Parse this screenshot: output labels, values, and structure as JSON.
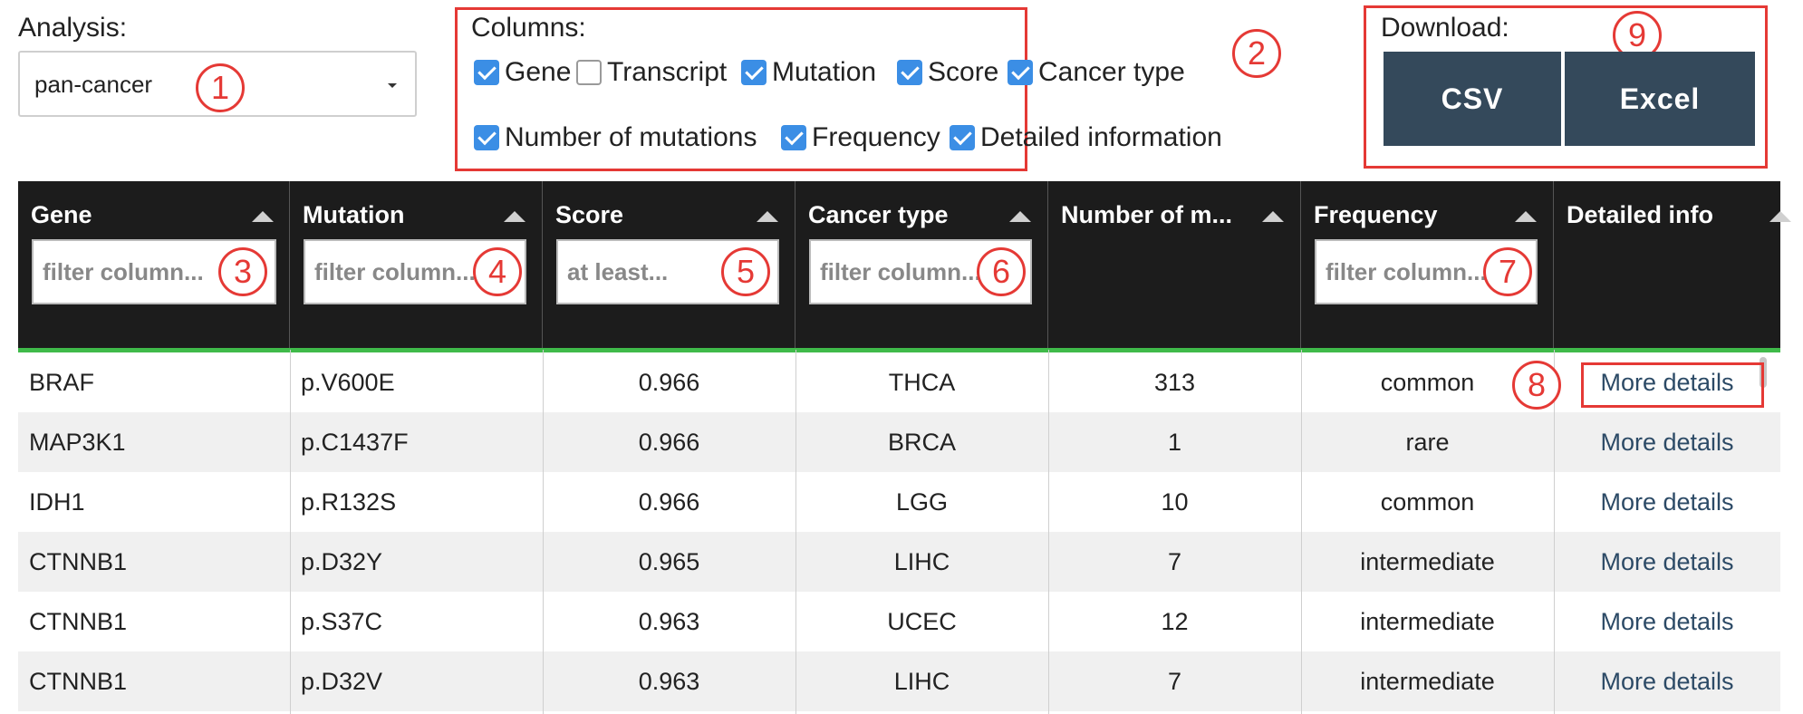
{
  "analysis": {
    "label": "Analysis:",
    "value": "pan-cancer"
  },
  "columns": {
    "label": "Columns:",
    "options": [
      {
        "label": "Gene",
        "checked": true
      },
      {
        "label": "Transcript",
        "checked": false
      },
      {
        "label": "Mutation",
        "checked": true
      },
      {
        "label": "Score",
        "checked": true
      },
      {
        "label": "Cancer type",
        "checked": true
      },
      {
        "label": "Number of mutations",
        "checked": true
      },
      {
        "label": "Frequency",
        "checked": true
      },
      {
        "label": "Detailed information",
        "checked": true
      }
    ]
  },
  "download": {
    "label": "Download:",
    "csv": "CSV",
    "excel": "Excel"
  },
  "table": {
    "headers": [
      "Gene",
      "Mutation",
      "Score",
      "Cancer type",
      "Number of m...",
      "Frequency",
      "Detailed info"
    ],
    "filters": {
      "gene": "filter column...",
      "mutation": "filter column...",
      "score": "at least...",
      "cancer": "filter column...",
      "frequency": "filter column..."
    },
    "rows": [
      [
        "BRAF",
        "p.V600E",
        "0.966",
        "THCA",
        "313",
        "common",
        "More details"
      ],
      [
        "MAP3K1",
        "p.C1437F",
        "0.966",
        "BRCA",
        "1",
        "rare",
        "More details"
      ],
      [
        "IDH1",
        "p.R132S",
        "0.966",
        "LGG",
        "10",
        "common",
        "More details"
      ],
      [
        "CTNNB1",
        "p.D32Y",
        "0.965",
        "LIHC",
        "7",
        "intermediate",
        "More details"
      ],
      [
        "CTNNB1",
        "p.S37C",
        "0.963",
        "UCEC",
        "12",
        "intermediate",
        "More details"
      ],
      [
        "CTNNB1",
        "p.D32V",
        "0.963",
        "LIHC",
        "7",
        "intermediate",
        "More details"
      ]
    ]
  },
  "callouts": [
    "1",
    "2",
    "3",
    "4",
    "5",
    "6",
    "7",
    "8",
    "9"
  ],
  "colors": {
    "header_bg": "#1c1c1c",
    "accent_line": "#3fba4a",
    "button_bg": "#34495b",
    "annotation": "#e53935",
    "checkbox": "#3b8ee5"
  }
}
